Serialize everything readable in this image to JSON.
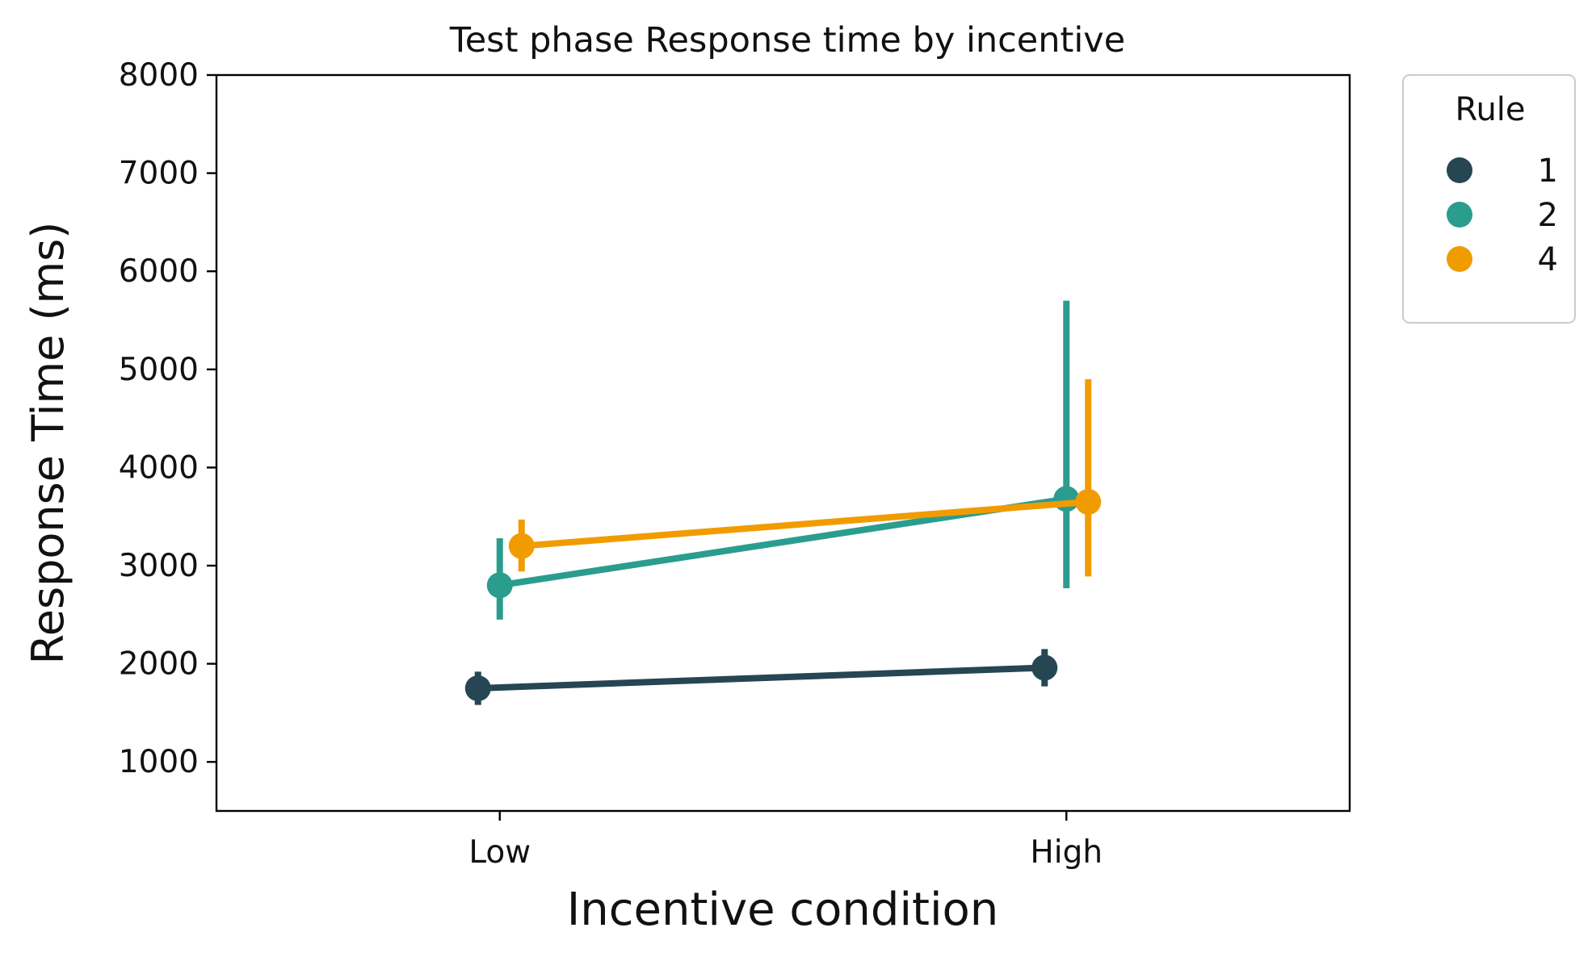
{
  "chart_data": {
    "type": "line",
    "title": "Test phase Response time by incentive",
    "xlabel": "Incentive condition",
    "ylabel": "Response Time (ms)",
    "categories": [
      "Low",
      "High"
    ],
    "ylim": [
      500,
      8000
    ],
    "yticks": [
      1000,
      2000,
      3000,
      4000,
      5000,
      6000,
      7000,
      8000
    ],
    "grid": false,
    "legend": {
      "title": "Rule",
      "placement": "outside-top-right"
    },
    "series": [
      {
        "name": "1",
        "color": "#264653",
        "values": [
          1750,
          1960
        ],
        "err_low": [
          1580,
          1770
        ],
        "err_high": [
          1920,
          2150
        ]
      },
      {
        "name": "2",
        "color": "#2a9d8f",
        "values": [
          2800,
          3680
        ],
        "err_low": [
          2450,
          2770
        ],
        "err_high": [
          3280,
          5700
        ]
      },
      {
        "name": "4",
        "color": "#f09c00",
        "values": [
          3200,
          3650
        ],
        "err_low": [
          2940,
          2890
        ],
        "err_high": [
          3470,
          4900
        ]
      }
    ]
  }
}
